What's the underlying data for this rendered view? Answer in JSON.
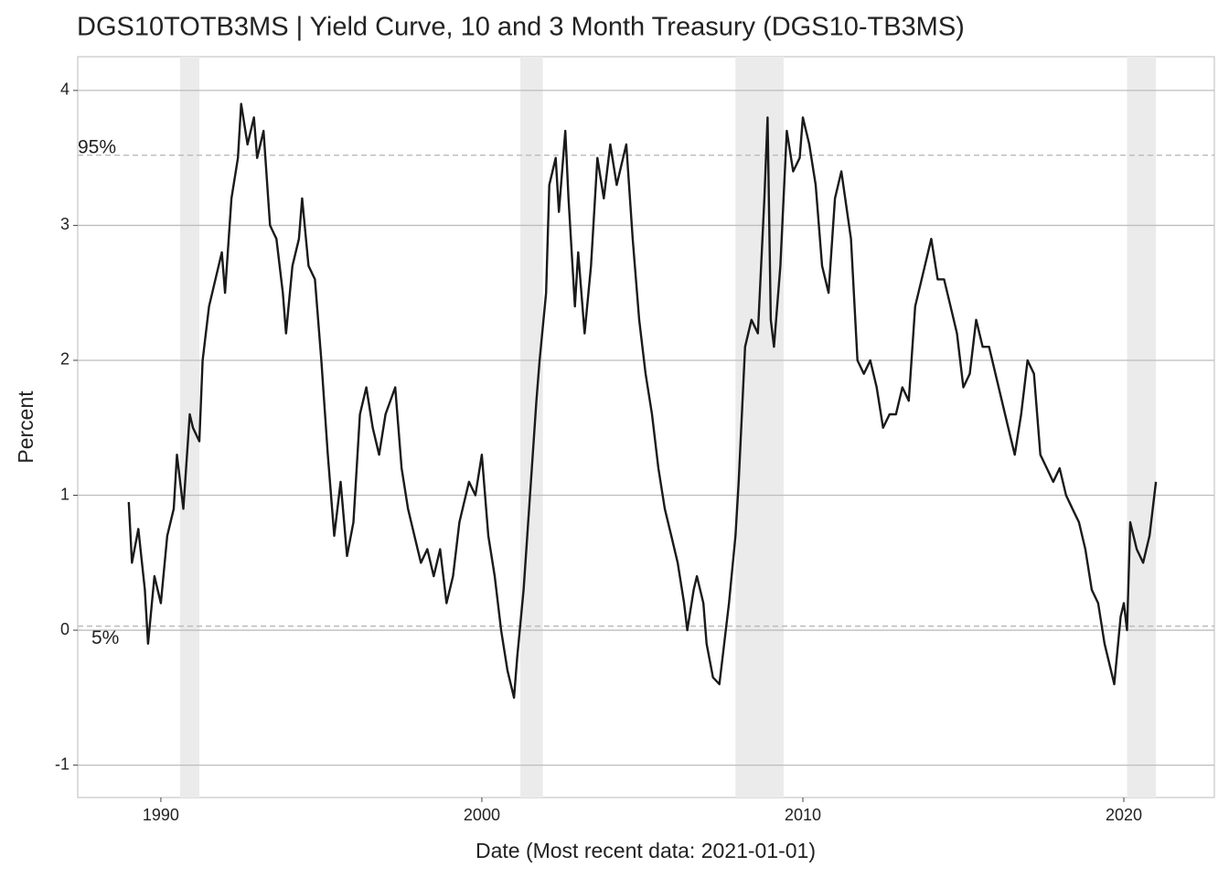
{
  "chart_data": {
    "type": "line",
    "title": "DGS10TOTB3MS | Yield Curve, 10 and 3 Month Treasury (DGS10-TB3MS)",
    "x_label": "Date (Most recent data: 2021-01-01)",
    "y_label": "Percent",
    "xlim": [
      1987.41,
      2022.82
    ],
    "ylim": [
      -1.24,
      4.25
    ],
    "xticks": [
      1990,
      2000,
      2010,
      2020
    ],
    "yticks": [
      -1,
      0,
      1,
      2,
      3,
      4
    ],
    "grid": true,
    "shaded_ranges": [
      [
        1990.6,
        1991.2
      ],
      [
        2001.2,
        2001.9
      ],
      [
        2007.9,
        2009.4
      ],
      [
        2020.1,
        2021.0
      ]
    ],
    "reference_lines": [
      {
        "value": 3.52,
        "label": "95%"
      },
      {
        "value": 0.03,
        "label": "5%"
      }
    ],
    "x": [
      1989.0,
      1989.1,
      1989.3,
      1989.5,
      1989.6,
      1989.8,
      1990.0,
      1990.2,
      1990.4,
      1990.5,
      1990.7,
      1990.9,
      1991.0,
      1991.2,
      1991.3,
      1991.5,
      1991.7,
      1991.9,
      1992.0,
      1992.2,
      1992.4,
      1992.5,
      1992.7,
      1992.9,
      1993.0,
      1993.2,
      1993.4,
      1993.6,
      1993.8,
      1993.9,
      1994.1,
      1994.3,
      1994.4,
      1994.6,
      1994.8,
      1995.0,
      1995.2,
      1995.4,
      1995.6,
      1995.8,
      1996.0,
      1996.2,
      1996.4,
      1996.6,
      1996.8,
      1997.0,
      1997.3,
      1997.5,
      1997.7,
      1997.9,
      1998.1,
      1998.3,
      1998.5,
      1998.7,
      1998.9,
      1999.1,
      1999.3,
      1999.6,
      1999.8,
      2000.0,
      2000.2,
      2000.4,
      2000.6,
      2000.8,
      2001.0,
      2001.1,
      2001.3,
      2001.5,
      2001.7,
      2001.8,
      2002.0,
      2002.1,
      2002.3,
      2002.4,
      2002.6,
      2002.7,
      2002.9,
      2003.0,
      2003.2,
      2003.4,
      2003.6,
      2003.8,
      2004.0,
      2004.2,
      2004.5,
      2004.7,
      2004.9,
      2005.1,
      2005.3,
      2005.5,
      2005.7,
      2005.9,
      2006.1,
      2006.3,
      2006.4,
      2006.6,
      2006.7,
      2006.9,
      2007.0,
      2007.2,
      2007.4,
      2007.5,
      2007.7,
      2007.9,
      2008.0,
      2008.2,
      2008.4,
      2008.6,
      2008.8,
      2008.9,
      2009.0,
      2009.1,
      2009.3,
      2009.5,
      2009.7,
      2009.9,
      2010.0,
      2010.2,
      2010.4,
      2010.6,
      2010.8,
      2011.0,
      2011.2,
      2011.5,
      2011.7,
      2011.9,
      2012.1,
      2012.3,
      2012.5,
      2012.7,
      2012.9,
      2013.1,
      2013.3,
      2013.5,
      2013.7,
      2013.9,
      2014.0,
      2014.2,
      2014.4,
      2014.6,
      2014.8,
      2015.0,
      2015.2,
      2015.4,
      2015.6,
      2015.8,
      2016.0,
      2016.2,
      2016.4,
      2016.6,
      2016.8,
      2017.0,
      2017.2,
      2017.4,
      2017.6,
      2017.8,
      2018.0,
      2018.2,
      2018.4,
      2018.6,
      2018.8,
      2019.0,
      2019.2,
      2019.4,
      2019.6,
      2019.7,
      2019.9,
      2020.0,
      2020.1,
      2020.2,
      2020.4,
      2020.6,
      2020.8,
      2021.0
    ],
    "series": [
      {
        "name": "DGS10-TB3MS",
        "color": "#1a1a1a",
        "values": [
          0.95,
          0.5,
          0.75,
          0.3,
          -0.1,
          0.4,
          0.2,
          0.7,
          0.9,
          1.3,
          0.9,
          1.6,
          1.5,
          1.4,
          2.0,
          2.4,
          2.6,
          2.8,
          2.5,
          3.2,
          3.5,
          3.9,
          3.6,
          3.8,
          3.5,
          3.7,
          3.0,
          2.9,
          2.5,
          2.2,
          2.7,
          2.9,
          3.2,
          2.7,
          2.6,
          2.0,
          1.3,
          0.7,
          1.1,
          0.55,
          0.8,
          1.6,
          1.8,
          1.5,
          1.3,
          1.6,
          1.8,
          1.2,
          0.9,
          0.7,
          0.5,
          0.6,
          0.4,
          0.6,
          0.2,
          0.4,
          0.8,
          1.1,
          1.0,
          1.3,
          0.7,
          0.4,
          0.0,
          -0.3,
          -0.5,
          -0.2,
          0.3,
          1.0,
          1.7,
          2.0,
          2.5,
          3.3,
          3.5,
          3.1,
          3.7,
          3.2,
          2.4,
          2.8,
          2.2,
          2.7,
          3.5,
          3.2,
          3.6,
          3.3,
          3.6,
          2.9,
          2.3,
          1.9,
          1.6,
          1.2,
          0.9,
          0.7,
          0.5,
          0.2,
          0.0,
          0.3,
          0.4,
          0.2,
          -0.1,
          -0.35,
          -0.4,
          -0.2,
          0.2,
          0.7,
          1.1,
          2.1,
          2.3,
          2.2,
          3.2,
          3.8,
          2.3,
          2.1,
          2.7,
          3.7,
          3.4,
          3.5,
          3.8,
          3.6,
          3.3,
          2.7,
          2.5,
          3.2,
          3.4,
          2.9,
          2.0,
          1.9,
          2.0,
          1.8,
          1.5,
          1.6,
          1.6,
          1.8,
          1.7,
          2.4,
          2.6,
          2.8,
          2.9,
          2.6,
          2.6,
          2.4,
          2.2,
          1.8,
          1.9,
          2.3,
          2.1,
          2.1,
          1.9,
          1.7,
          1.5,
          1.3,
          1.6,
          2.0,
          1.9,
          1.3,
          1.2,
          1.1,
          1.2,
          1.0,
          0.9,
          0.8,
          0.6,
          0.3,
          0.2,
          -0.1,
          -0.3,
          -0.4,
          0.1,
          0.2,
          0.0,
          0.8,
          0.6,
          0.5,
          0.7,
          1.1
        ]
      }
    ]
  }
}
